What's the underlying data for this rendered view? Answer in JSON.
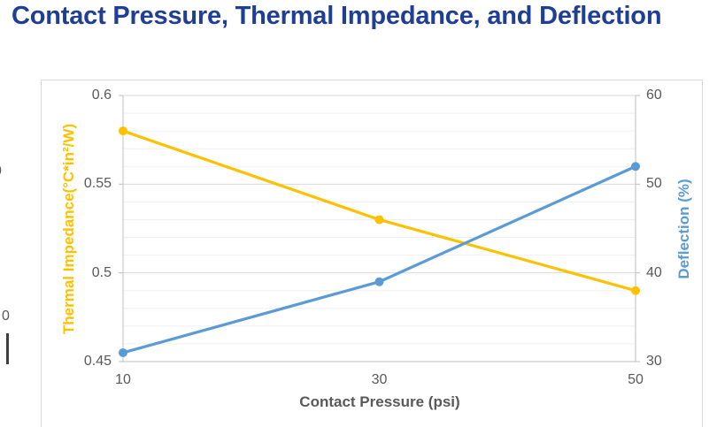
{
  "page": {
    "title": "Contact Pressure, Thermal Impedance, and Deflection",
    "title_color": "#1F3E96"
  },
  "cropped_left_chart_artifacts": {
    "partial_tick_label_1": "0",
    "partial_tick_label_2": "0"
  },
  "chart_data": {
    "type": "line",
    "title": "Contact Pressure, Thermal Impedance, and Deflection",
    "x": {
      "label": "Contact Pressure (psi)",
      "categories": [
        10,
        30,
        50
      ],
      "tick_labels": [
        "10",
        "30",
        "50"
      ]
    },
    "y_left": {
      "label": "Thermal Impedance(°C*in²/W)",
      "min": 0.45,
      "max": 0.6,
      "major_step": 0.05,
      "minor_step": 0.01,
      "tick_labels": [
        "0.6",
        "0.55",
        "0.5",
        "0.45"
      ],
      "tick_values": [
        0.6,
        0.55,
        0.5,
        0.45
      ],
      "color": "#FFC000"
    },
    "y_right": {
      "label": "Deflection (%)",
      "min": 30,
      "max": 60,
      "major_step": 10,
      "tick_labels": [
        "60",
        "50",
        "40",
        "30"
      ],
      "tick_values": [
        60,
        50,
        40,
        30
      ],
      "color": "#5B9BD5"
    },
    "series": [
      {
        "name": "Thermal Impedance",
        "axis": "left",
        "color": "#FFC000",
        "values": [
          0.58,
          0.53,
          0.49
        ]
      },
      {
        "name": "Deflection",
        "axis": "right",
        "color": "#5B9BD5",
        "values": [
          31,
          39,
          52
        ]
      }
    ],
    "grid": {
      "major_color": "#D9D9D9",
      "minor_color": "#EFEFEF",
      "axis_color": "#BFBFBF",
      "minor_gridlines": true
    },
    "legend": "none",
    "tick_label_color": "#595959"
  }
}
